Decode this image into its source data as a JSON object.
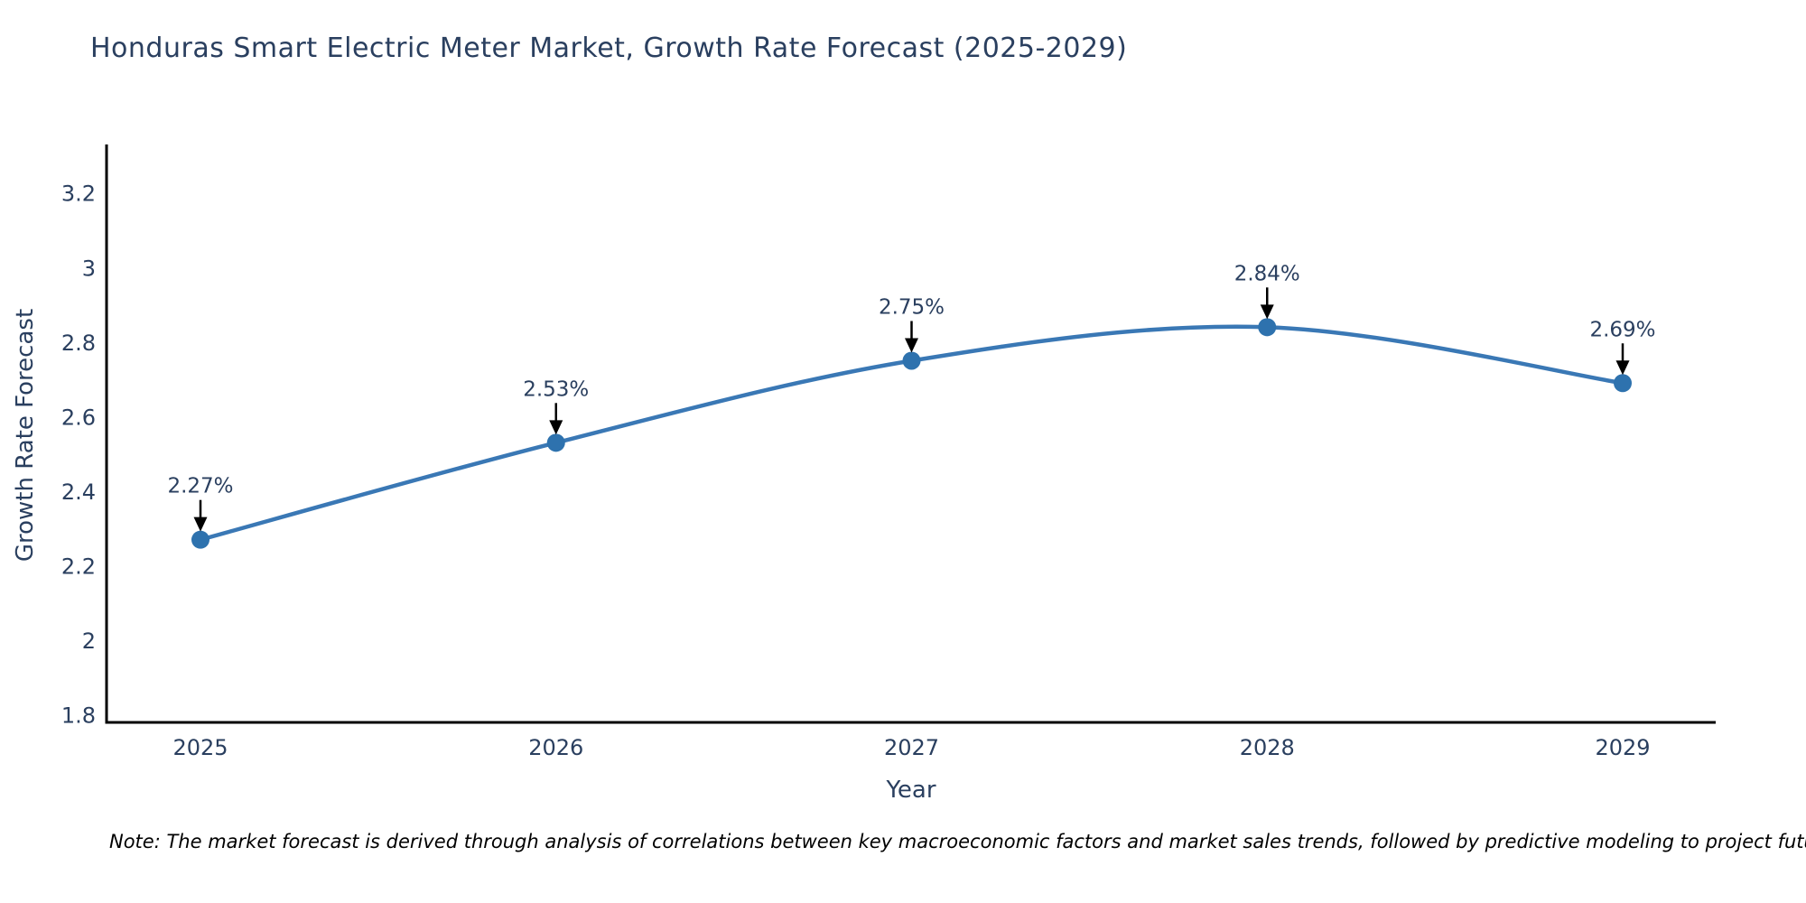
{
  "chart_data": {
    "type": "line",
    "title": "Honduras Smart Electric Meter Market, Growth Rate Forecast (2025-2029)",
    "xlabel": "Year",
    "ylabel": "Growth Rate Forecast",
    "categories": [
      "2025",
      "2026",
      "2027",
      "2028",
      "2029"
    ],
    "series": [
      {
        "name": "Growth Rate Forecast",
        "values": [
          2.27,
          2.53,
          2.75,
          2.84,
          2.69
        ],
        "point_labels": [
          "2.27%",
          "2.53%",
          "2.75%",
          "2.84%",
          "2.69%"
        ]
      }
    ],
    "ytick_labels": [
      "3.2",
      "3",
      "2.8",
      "2.6",
      "2.4",
      "2.2",
      "2",
      "1.8"
    ],
    "ytick_values": [
      3.2,
      3.0,
      2.8,
      2.6,
      2.4,
      2.2,
      2.0,
      1.8
    ],
    "ylim": [
      1.78,
      3.33
    ],
    "line_shape": "spline",
    "grid": false,
    "legend_visible": false,
    "colors": {
      "line": "#3a78b5",
      "marker": "#2e72ae",
      "axis": "#000000",
      "text": "#2a3f5f",
      "annotation_arrow": "#000000",
      "background": "#ffffff"
    }
  },
  "note": "Note: The market forecast is derived through analysis of correlations between key macroeconomic factors and market sales trends, followed by predictive modeling to project future sales"
}
